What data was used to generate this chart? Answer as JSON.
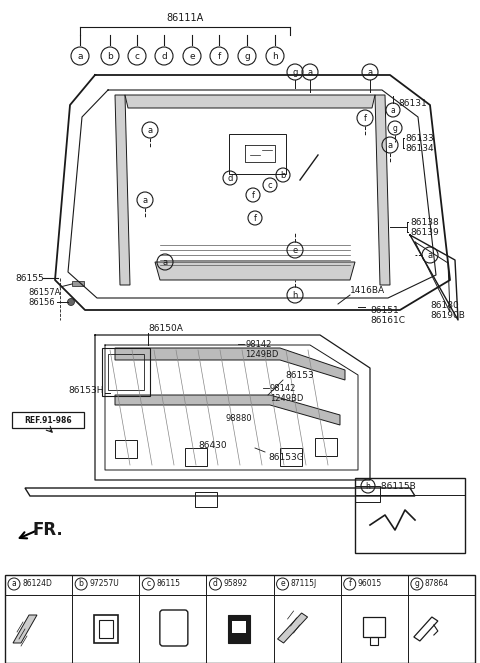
{
  "bg_color": "#ffffff",
  "line_color": "#1a1a1a",
  "text_color": "#1a1a1a",
  "parts_legend": [
    {
      "label": "a",
      "part_no": "86124D"
    },
    {
      "label": "b",
      "part_no": "97257U"
    },
    {
      "label": "c",
      "part_no": "86115"
    },
    {
      "label": "d",
      "part_no": "95892"
    },
    {
      "label": "e",
      "part_no": "87115J"
    },
    {
      "label": "f",
      "part_no": "96015"
    },
    {
      "label": "g",
      "part_no": "87864"
    }
  ],
  "part_h": {
    "label": "h",
    "part_no": "86115B"
  }
}
